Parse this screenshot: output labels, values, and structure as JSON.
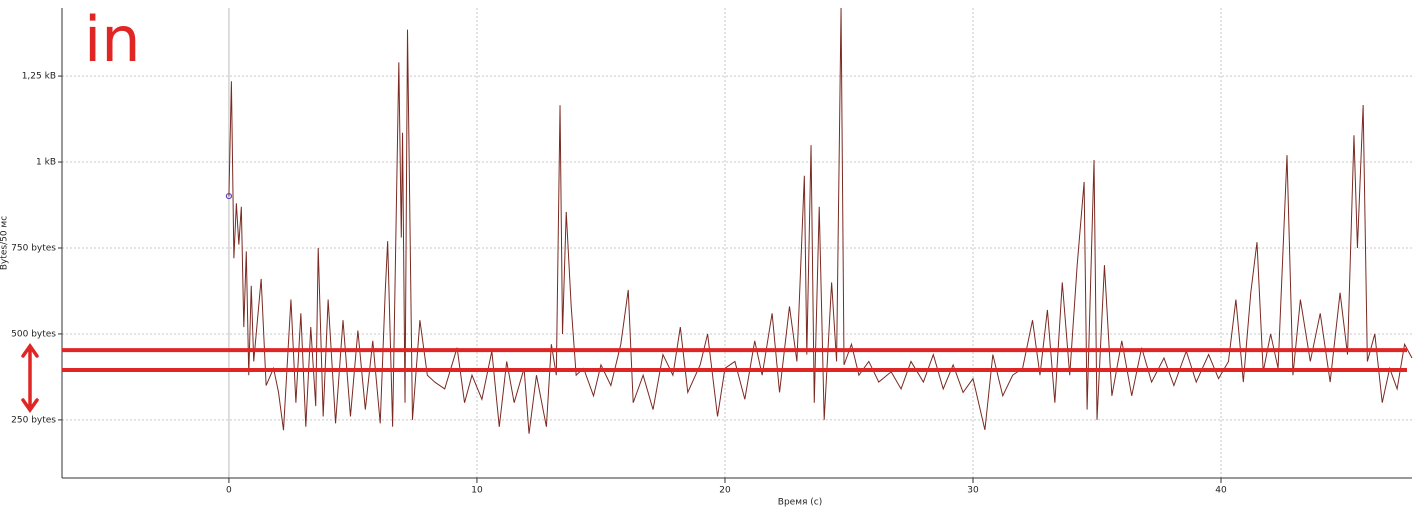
{
  "chart_data": {
    "type": "line",
    "x_label": "Время (с)",
    "y_label": "Bytes/50 мс",
    "annotation_text": "in",
    "annotation_lines": [
      453,
      395
    ],
    "annotation_color": "#e02525",
    "marker": {
      "x": 0,
      "y": 901,
      "color": "#5a3fc0"
    },
    "xlim": [
      -6.73,
      47.7
    ],
    "ylim": [
      81,
      1448
    ],
    "xticks": [
      0,
      10,
      20,
      30,
      40
    ],
    "yticks": [
      {
        "value": 250,
        "label": "250 bytes"
      },
      {
        "value": 500,
        "label": "500 bytes"
      },
      {
        "value": 750,
        "label": "750 bytes"
      },
      {
        "value": 1000,
        "label": "1 kB"
      },
      {
        "value": 1250,
        "label": "1,25 kB"
      }
    ],
    "grid": true,
    "series": [
      {
        "color": "#7a2a22",
        "x": [
          0,
          0.1,
          0.2,
          0.3,
          0.4,
          0.5,
          0.6,
          0.7,
          0.8,
          0.9,
          1.0,
          1.3,
          1.5,
          1.8,
          2.0,
          2.2,
          2.5,
          2.7,
          2.9,
          3.1,
          3.3,
          3.5,
          3.6,
          3.8,
          4.0,
          4.3,
          4.6,
          4.9,
          5.2,
          5.5,
          5.8,
          6.1,
          6.3,
          6.4,
          6.6,
          6.85,
          6.95,
          7.0,
          7.1,
          7.2,
          7.4,
          7.7,
          8.0,
          8.3,
          8.7,
          9.2,
          9.5,
          9.8,
          10.2,
          10.6,
          10.9,
          11.2,
          11.5,
          11.9,
          12.1,
          12.4,
          12.8,
          13.0,
          13.2,
          13.35,
          13.45,
          13.6,
          13.8,
          14.0,
          14.3,
          14.7,
          15.0,
          15.4,
          15.8,
          16.1,
          16.3,
          16.7,
          17.1,
          17.5,
          17.9,
          18.2,
          18.5,
          19.0,
          19.3,
          19.7,
          20.0,
          20.4,
          20.8,
          21.2,
          21.5,
          21.9,
          22.2,
          22.6,
          22.9,
          23.2,
          23.3,
          23.47,
          23.6,
          23.8,
          24.0,
          24.3,
          24.5,
          24.68,
          24.8,
          25.1,
          25.4,
          25.8,
          26.2,
          26.7,
          27.1,
          27.5,
          28.0,
          28.4,
          28.8,
          29.2,
          29.6,
          30.0,
          30.48,
          30.8,
          31.2,
          31.6,
          32.0,
          32.4,
          32.7,
          33.0,
          33.3,
          33.6,
          33.9,
          34.2,
          34.48,
          34.6,
          34.88,
          35.0,
          35.3,
          35.6,
          36.0,
          36.4,
          36.8,
          37.2,
          37.7,
          38.1,
          38.6,
          39.0,
          39.5,
          39.9,
          40.3,
          40.6,
          40.9,
          41.2,
          41.45,
          41.7,
          42.0,
          42.3,
          42.66,
          42.9,
          43.2,
          43.6,
          44.0,
          44.4,
          44.8,
          45.1,
          45.36,
          45.5,
          45.73,
          45.9,
          46.2,
          46.5,
          46.8,
          47.1,
          47.4,
          47.7
        ],
        "values": [
          900,
          1235,
          720,
          880,
          760,
          870,
          520,
          740,
          380,
          640,
          420,
          660,
          350,
          400,
          330,
          220,
          600,
          300,
          560,
          230,
          520,
          290,
          750,
          260,
          600,
          240,
          540,
          260,
          510,
          280,
          480,
          240,
          620,
          770,
          230,
          1290,
          780,
          1085,
          300,
          1385,
          250,
          540,
          380,
          360,
          340,
          460,
          300,
          380,
          310,
          450,
          230,
          420,
          300,
          400,
          210,
          380,
          230,
          470,
          380,
          1165,
          500,
          855,
          580,
          380,
          400,
          320,
          410,
          350,
          470,
          628,
          300,
          380,
          280,
          440,
          380,
          520,
          330,
          410,
          500,
          260,
          400,
          420,
          310,
          480,
          380,
          560,
          330,
          580,
          420,
          960,
          440,
          1049,
          300,
          870,
          250,
          650,
          420,
          1448,
          410,
          470,
          380,
          420,
          360,
          390,
          340,
          420,
          360,
          440,
          340,
          410,
          330,
          370,
          221,
          440,
          320,
          380,
          400,
          540,
          380,
          570,
          300,
          650,
          380,
          700,
          942,
          280,
          1006,
          250,
          700,
          320,
          480,
          320,
          460,
          360,
          430,
          350,
          450,
          360,
          440,
          370,
          420,
          600,
          360,
          620,
          767,
          390,
          500,
          400,
          1020,
          380,
          600,
          420,
          560,
          360,
          620,
          440,
          1078,
          750,
          1166,
          420,
          500,
          300,
          400,
          340,
          470,
          430
        ]
      }
    ]
  }
}
